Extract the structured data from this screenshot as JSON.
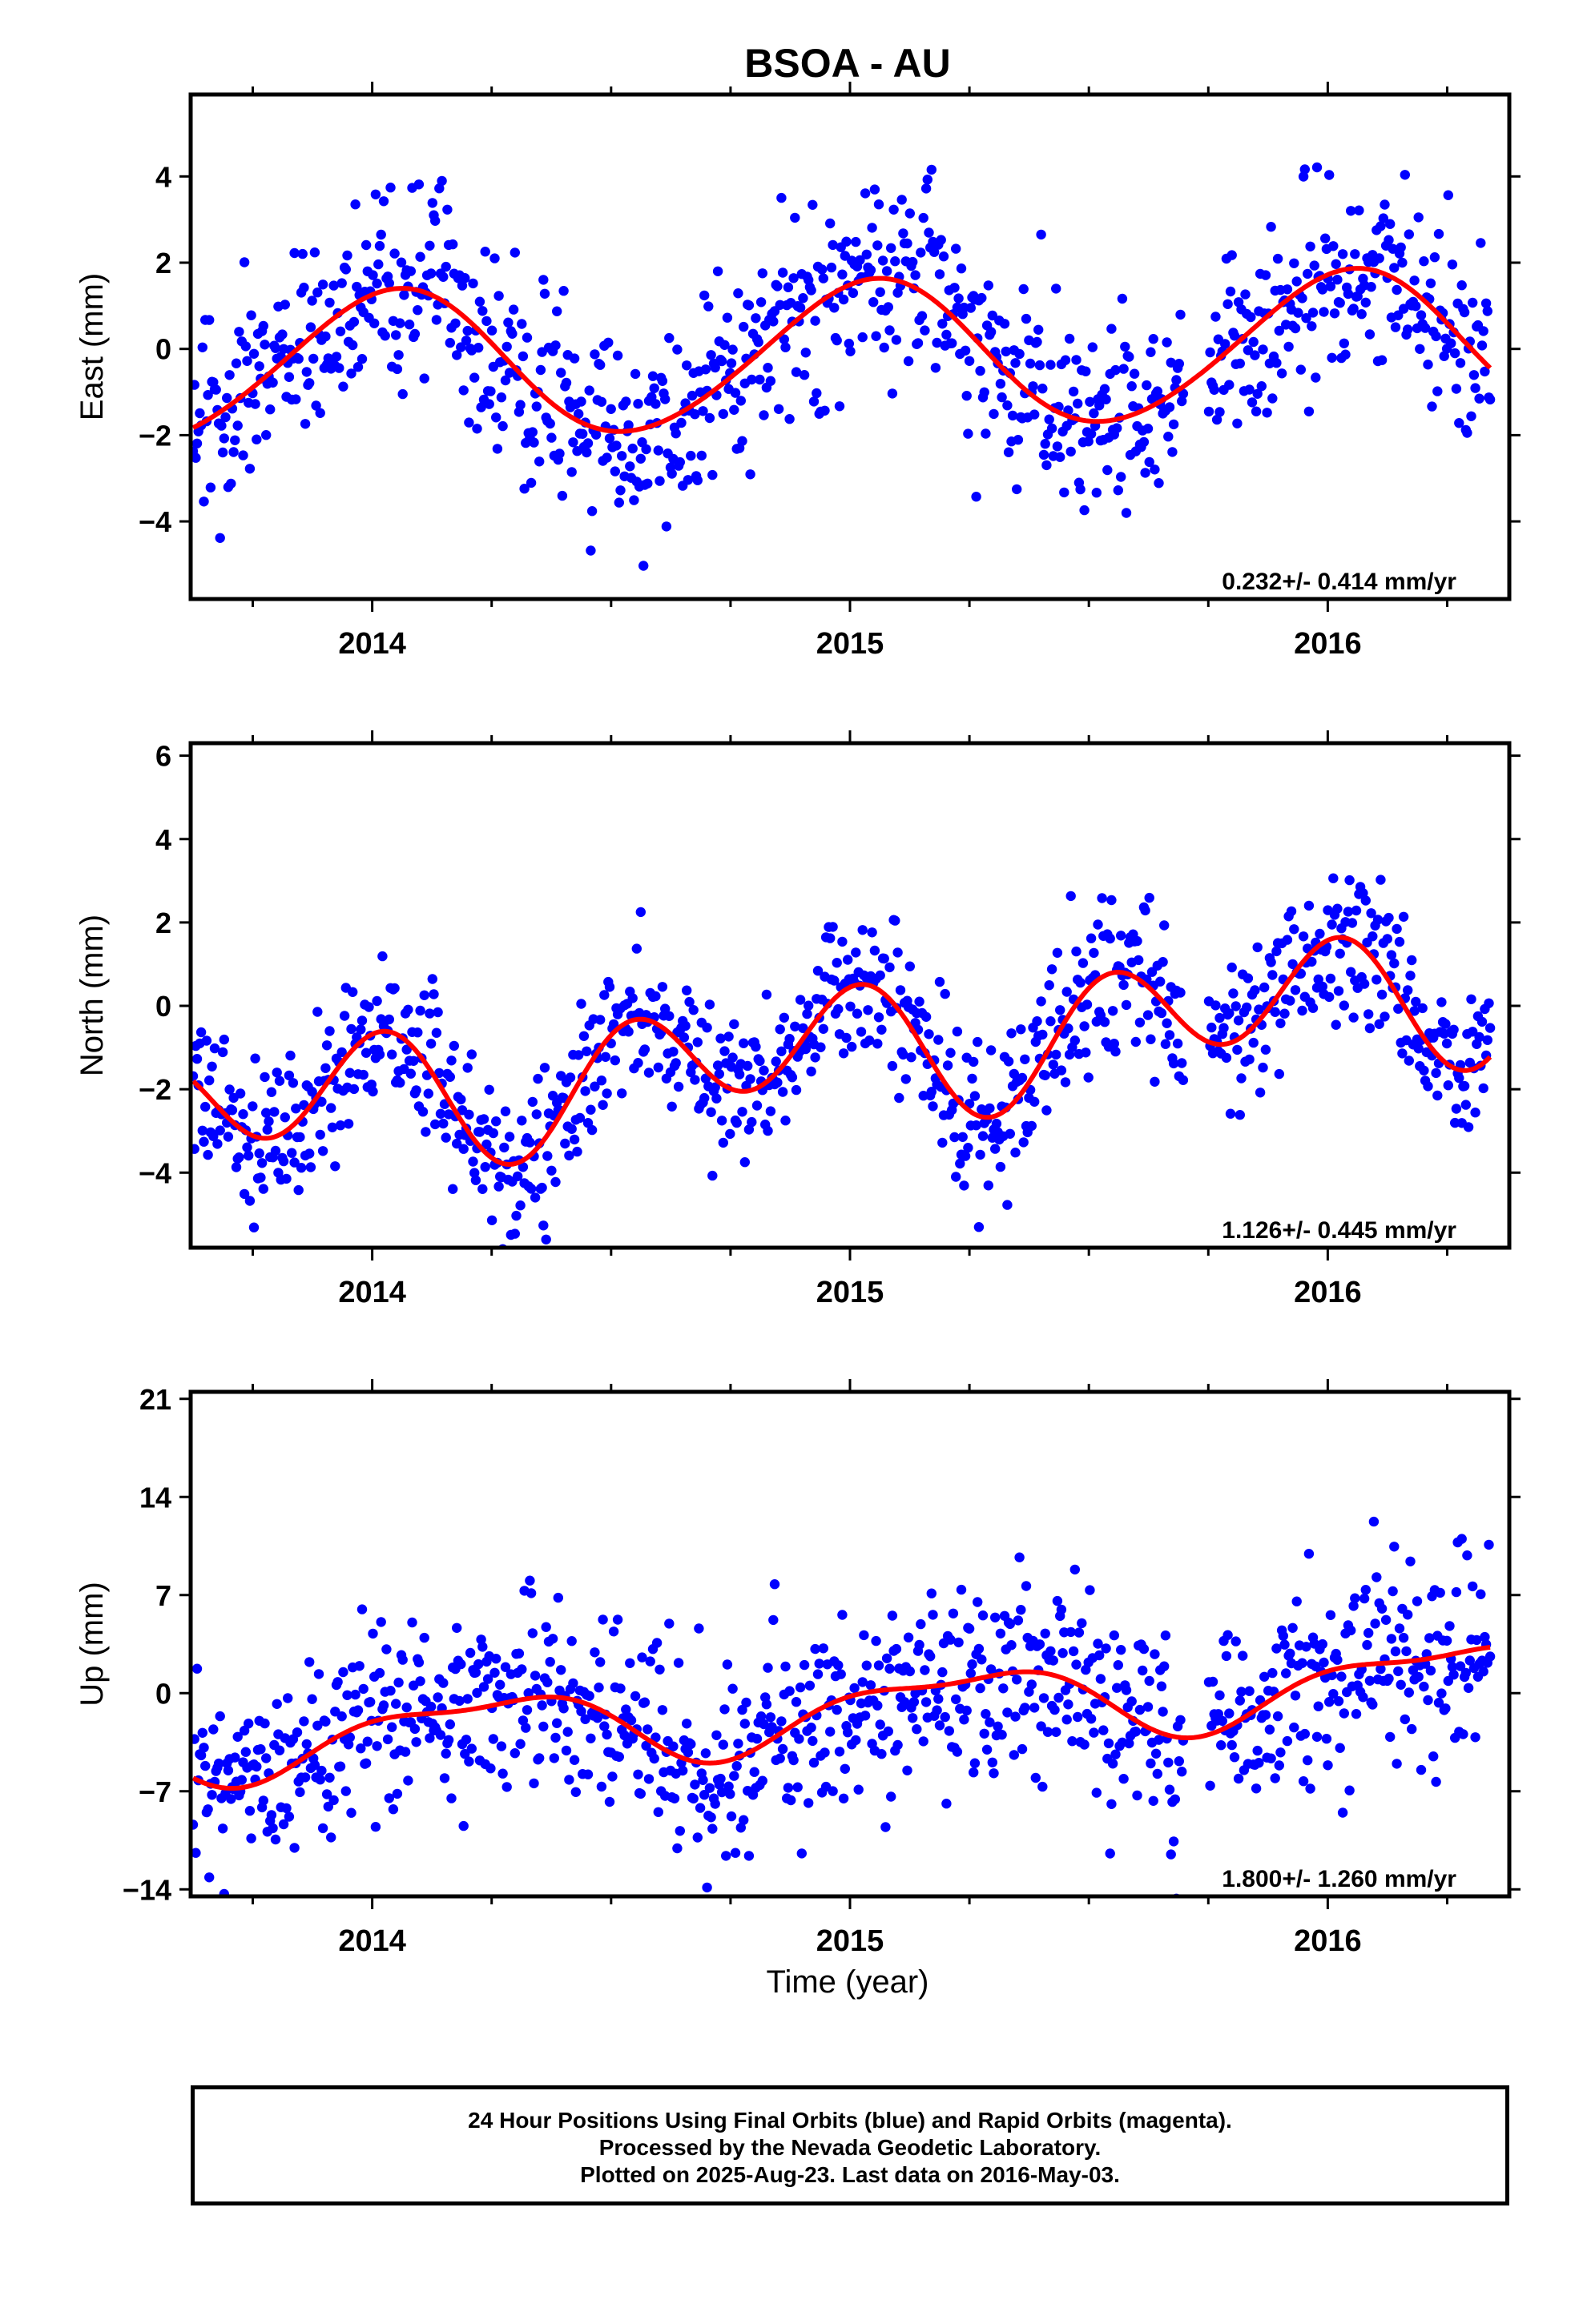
{
  "title": "BSOA - AU",
  "x_axis_label": "Time (year)",
  "footer": {
    "line1": "24 Hour Positions Using Final Orbits (blue) and Rapid Orbits (magenta).",
    "line2": "Processed by the Nevada Geodetic Laboratory.",
    "line3": "Plotted on 2025-Aug-23. Last data on 2016-May-03."
  },
  "colors": {
    "final_orbit_points": "#0000ff",
    "fit_curve": "#ff0000",
    "frame": "#000000"
  },
  "chart_data": [
    {
      "type": "scatter",
      "component": "east",
      "ylabel": "East (mm)",
      "xlim": [
        2013.62,
        2016.38
      ],
      "ylim": [
        -5.8,
        5.9
      ],
      "yticks": [
        -4,
        -2,
        0,
        2,
        4
      ],
      "xticks": [
        2014,
        2015,
        2016
      ],
      "rate_label": "0.232+/- 0.414 mm/yr",
      "grid": false,
      "model": {
        "offset": -0.15,
        "trend": 0.232,
        "annual_amp": 1.7,
        "annual_phase": 1.3,
        "semiannual_amp": 0.12,
        "semiannual_phase": 0.0
      },
      "noise_sd": 1.15,
      "series": [
        {
          "name": "Final Orbits",
          "n_points": 960
        }
      ]
    },
    {
      "type": "scatter",
      "component": "north",
      "ylabel": "North (mm)",
      "xlim": [
        2013.62,
        2016.38
      ],
      "ylim": [
        -5.8,
        6.3
      ],
      "yticks": [
        -4,
        -2,
        0,
        2,
        4,
        6
      ],
      "xticks": [
        2014,
        2015,
        2016
      ],
      "rate_label": "1.126+/- 0.445 mm/yr",
      "grid": false,
      "model": {
        "offset": -1.05,
        "trend": 1.126,
        "annual_amp": 0.62,
        "annual_phase": 2.65,
        "semiannual_amp": 1.35,
        "semiannual_phase": 1.1
      },
      "noise_sd": 0.95,
      "series": [
        {
          "name": "Final Orbits",
          "n_points": 960
        }
      ]
    },
    {
      "type": "scatter",
      "component": "up",
      "ylabel": "Up (mm)",
      "xlim": [
        2013.62,
        2016.38
      ],
      "ylim": [
        -14.5,
        21.5
      ],
      "yticks": [
        -14,
        -7,
        0,
        7,
        14,
        21
      ],
      "xticks": [
        2014,
        2015,
        2016
      ],
      "rate_label": "1.800+/- 1.260 mm/yr",
      "grid": false,
      "model": {
        "offset": -1.2,
        "trend": 1.8,
        "annual_amp": 2.4,
        "annual_phase": 0.1,
        "semiannual_amp": 0.9,
        "semiannual_phase": 2.2
      },
      "noise_sd": 3.6,
      "series": [
        {
          "name": "Final Orbits",
          "n_points": 960
        }
      ]
    }
  ]
}
